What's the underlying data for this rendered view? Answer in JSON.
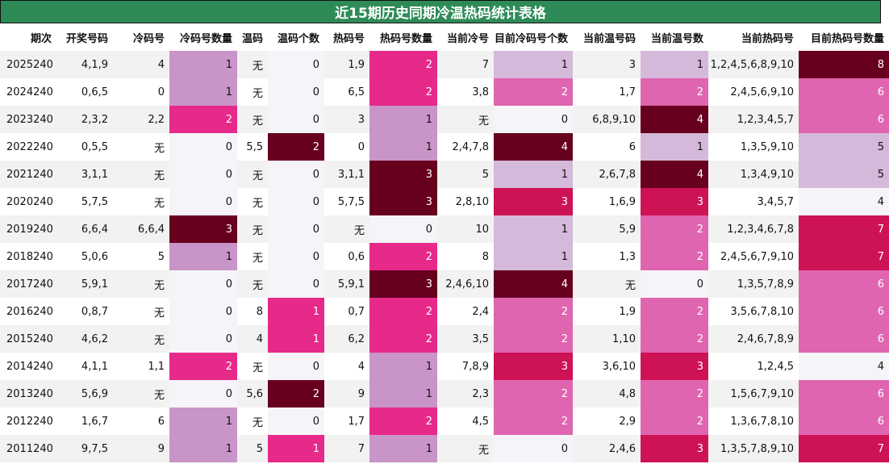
{
  "title": "近15期历史同期冷温热码统计表格",
  "chart_data": {
    "type": "table",
    "columns": [
      "期次",
      "开奖号码",
      "冷码号",
      "冷码号数量",
      "温码",
      "温码个数",
      "热码号",
      "热码号数量",
      "当前冷号",
      "目前冷码号个数",
      "当前温号码",
      "当前温号数",
      "当前热码号",
      "目前热码号数量"
    ],
    "rows": [
      [
        "2025240",
        "4,1,9",
        "4",
        "1",
        "无",
        "0",
        "1,9",
        "2",
        "7",
        "1",
        "3",
        "1",
        "1,2,4,5,6,8,9,10",
        "8"
      ],
      [
        "2024240",
        "0,6,5",
        "0",
        "1",
        "无",
        "0",
        "6,5",
        "2",
        "3,8",
        "2",
        "1,7",
        "2",
        "2,4,5,6,9,10",
        "6"
      ],
      [
        "2023240",
        "2,3,2",
        "2,2",
        "2",
        "无",
        "0",
        "3",
        "1",
        "无",
        "0",
        "6,8,9,10",
        "4",
        "1,2,3,4,5,7",
        "6"
      ],
      [
        "2022240",
        "0,5,5",
        "无",
        "0",
        "5,5",
        "2",
        "0",
        "1",
        "2,4,7,8",
        "4",
        "6",
        "1",
        "1,3,5,9,10",
        "5"
      ],
      [
        "2021240",
        "3,1,1",
        "无",
        "0",
        "无",
        "0",
        "3,1,1",
        "3",
        "5",
        "1",
        "2,6,7,8",
        "4",
        "1,3,4,9,10",
        "5"
      ],
      [
        "2020240",
        "5,7,5",
        "无",
        "0",
        "无",
        "0",
        "5,7,5",
        "3",
        "2,8,10",
        "3",
        "1,6,9",
        "3",
        "3,4,5,7",
        "4"
      ],
      [
        "2019240",
        "6,6,4",
        "6,6,4",
        "3",
        "无",
        "0",
        "无",
        "0",
        "10",
        "1",
        "5,9",
        "2",
        "1,2,3,4,6,7,8",
        "7"
      ],
      [
        "2018240",
        "5,0,6",
        "5",
        "1",
        "无",
        "0",
        "0,6",
        "2",
        "8",
        "1",
        "1,3",
        "2",
        "2,4,5,6,7,9,10",
        "7"
      ],
      [
        "2017240",
        "5,9,1",
        "无",
        "0",
        "无",
        "0",
        "5,9,1",
        "3",
        "2,4,6,10",
        "4",
        "无",
        "0",
        "1,3,5,7,8,9",
        "6"
      ],
      [
        "2016240",
        "0,8,7",
        "无",
        "0",
        "8",
        "1",
        "0,7",
        "2",
        "2,4",
        "2",
        "1,9",
        "2",
        "3,5,6,7,8,10",
        "6"
      ],
      [
        "2015240",
        "4,6,2",
        "无",
        "0",
        "4",
        "1",
        "6,2",
        "2",
        "3,5",
        "2",
        "1,10",
        "2",
        "2,4,6,7,8,9",
        "6"
      ],
      [
        "2014240",
        "4,1,1",
        "1,1",
        "2",
        "无",
        "0",
        "4",
        "1",
        "7,8,9",
        "3",
        "3,6,10",
        "3",
        "1,2,4,5",
        "4"
      ],
      [
        "2013240",
        "5,6,9",
        "无",
        "0",
        "5,6",
        "2",
        "9",
        "1",
        "2,3",
        "2",
        "4,8",
        "2",
        "1,5,6,7,9,10",
        "6"
      ],
      [
        "2012240",
        "1,6,7",
        "6",
        "1",
        "无",
        "0",
        "1,7",
        "2",
        "4,5",
        "2",
        "2,9",
        "2",
        "1,3,6,7,8,10",
        "6"
      ],
      [
        "2011240",
        "9,7,5",
        "9",
        "1",
        "5",
        "1",
        "7",
        "1",
        "无",
        "0",
        "2,4,6",
        "3",
        "1,3,5,7,8,9,10",
        "7"
      ]
    ],
    "count_columns": [
      3,
      5,
      7,
      9,
      11,
      13
    ],
    "colors": {
      "header_bg": "#2e8b57",
      "row_even": "#f2f2f2",
      "row_odd": "#ffffff",
      "heat_scale": [
        "#f7f4f9",
        "#d4b9da",
        "#c994c7",
        "#df65b0",
        "#e7298a",
        "#ce1256",
        "#67001f"
      ]
    }
  }
}
